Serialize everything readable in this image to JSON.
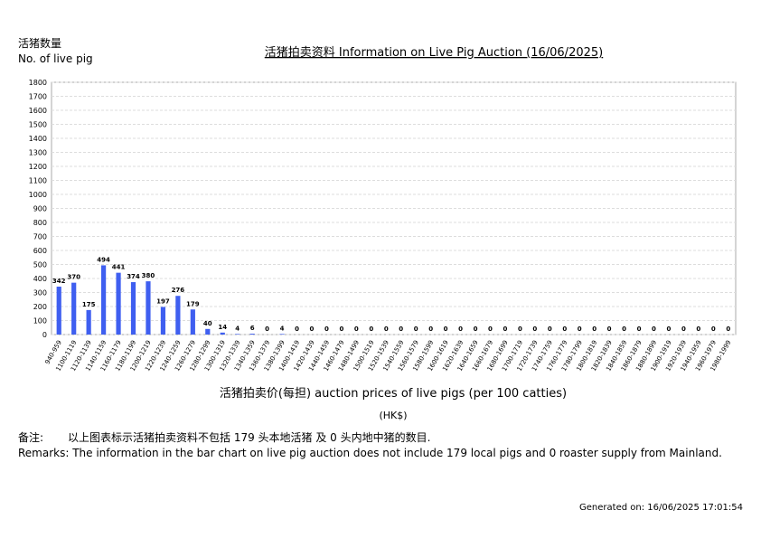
{
  "chart_data": {
    "type": "bar",
    "title": "活猪拍卖资料 Information on Live Pig Auction (16/06/2025)",
    "ylabel_cn": "活猪数量",
    "ylabel_en": "No. of live pig",
    "xlabel": "活猪拍卖价(每担) auction prices of live pigs (per 100 catties)",
    "xunit": "(HK$)",
    "remarks_cn_head": "备注:",
    "remarks_cn": "以上图表标示活猪拍卖资料不包括 179 头本地活猪 及 0 头内地中猪的数目.",
    "remarks_en": "Remarks: The information in the bar chart on live pig auction does not include 179 local pigs and 0 roaster supply from Mainland.",
    "generated": "Generated on: 16/06/2025 17:01:54",
    "categories": [
      "940-959",
      "1100-1119",
      "1120-1139",
      "1140-1159",
      "1160-1179",
      "1180-1199",
      "1200-1219",
      "1220-1239",
      "1240-1259",
      "1260-1279",
      "1280-1299",
      "1300-1319",
      "1320-1339",
      "1340-1359",
      "1360-1379",
      "1380-1399",
      "1400-1419",
      "1420-1439",
      "1440-1459",
      "1460-1479",
      "1480-1499",
      "1500-1519",
      "1520-1539",
      "1540-1559",
      "1560-1579",
      "1580-1599",
      "1600-1619",
      "1620-1639",
      "1640-1659",
      "1660-1679",
      "1680-1699",
      "1700-1719",
      "1720-1739",
      "1740-1759",
      "1760-1779",
      "1780-1799",
      "1800-1819",
      "1820-1839",
      "1840-1859",
      "1860-1879",
      "1880-1899",
      "1900-1919",
      "1920-1939",
      "1940-1959",
      "1960-1979",
      "1980-1999"
    ],
    "values": [
      342,
      370,
      175,
      494,
      441,
      374,
      380,
      197,
      276,
      179,
      40,
      14,
      4,
      6,
      0,
      4,
      0,
      0,
      0,
      0,
      0,
      0,
      0,
      0,
      0,
      0,
      0,
      0,
      0,
      0,
      0,
      0,
      0,
      0,
      0,
      0,
      0,
      0,
      0,
      0,
      0,
      0,
      0,
      0,
      0,
      0
    ],
    "color": "#3f5ff0",
    "ylim": [
      0,
      1800
    ],
    "yticks": [
      0,
      100,
      200,
      300,
      400,
      500,
      600,
      700,
      800,
      900,
      1000,
      1100,
      1200,
      1300,
      1400,
      1500,
      1600,
      1700,
      1800
    ],
    "grid": true
  }
}
